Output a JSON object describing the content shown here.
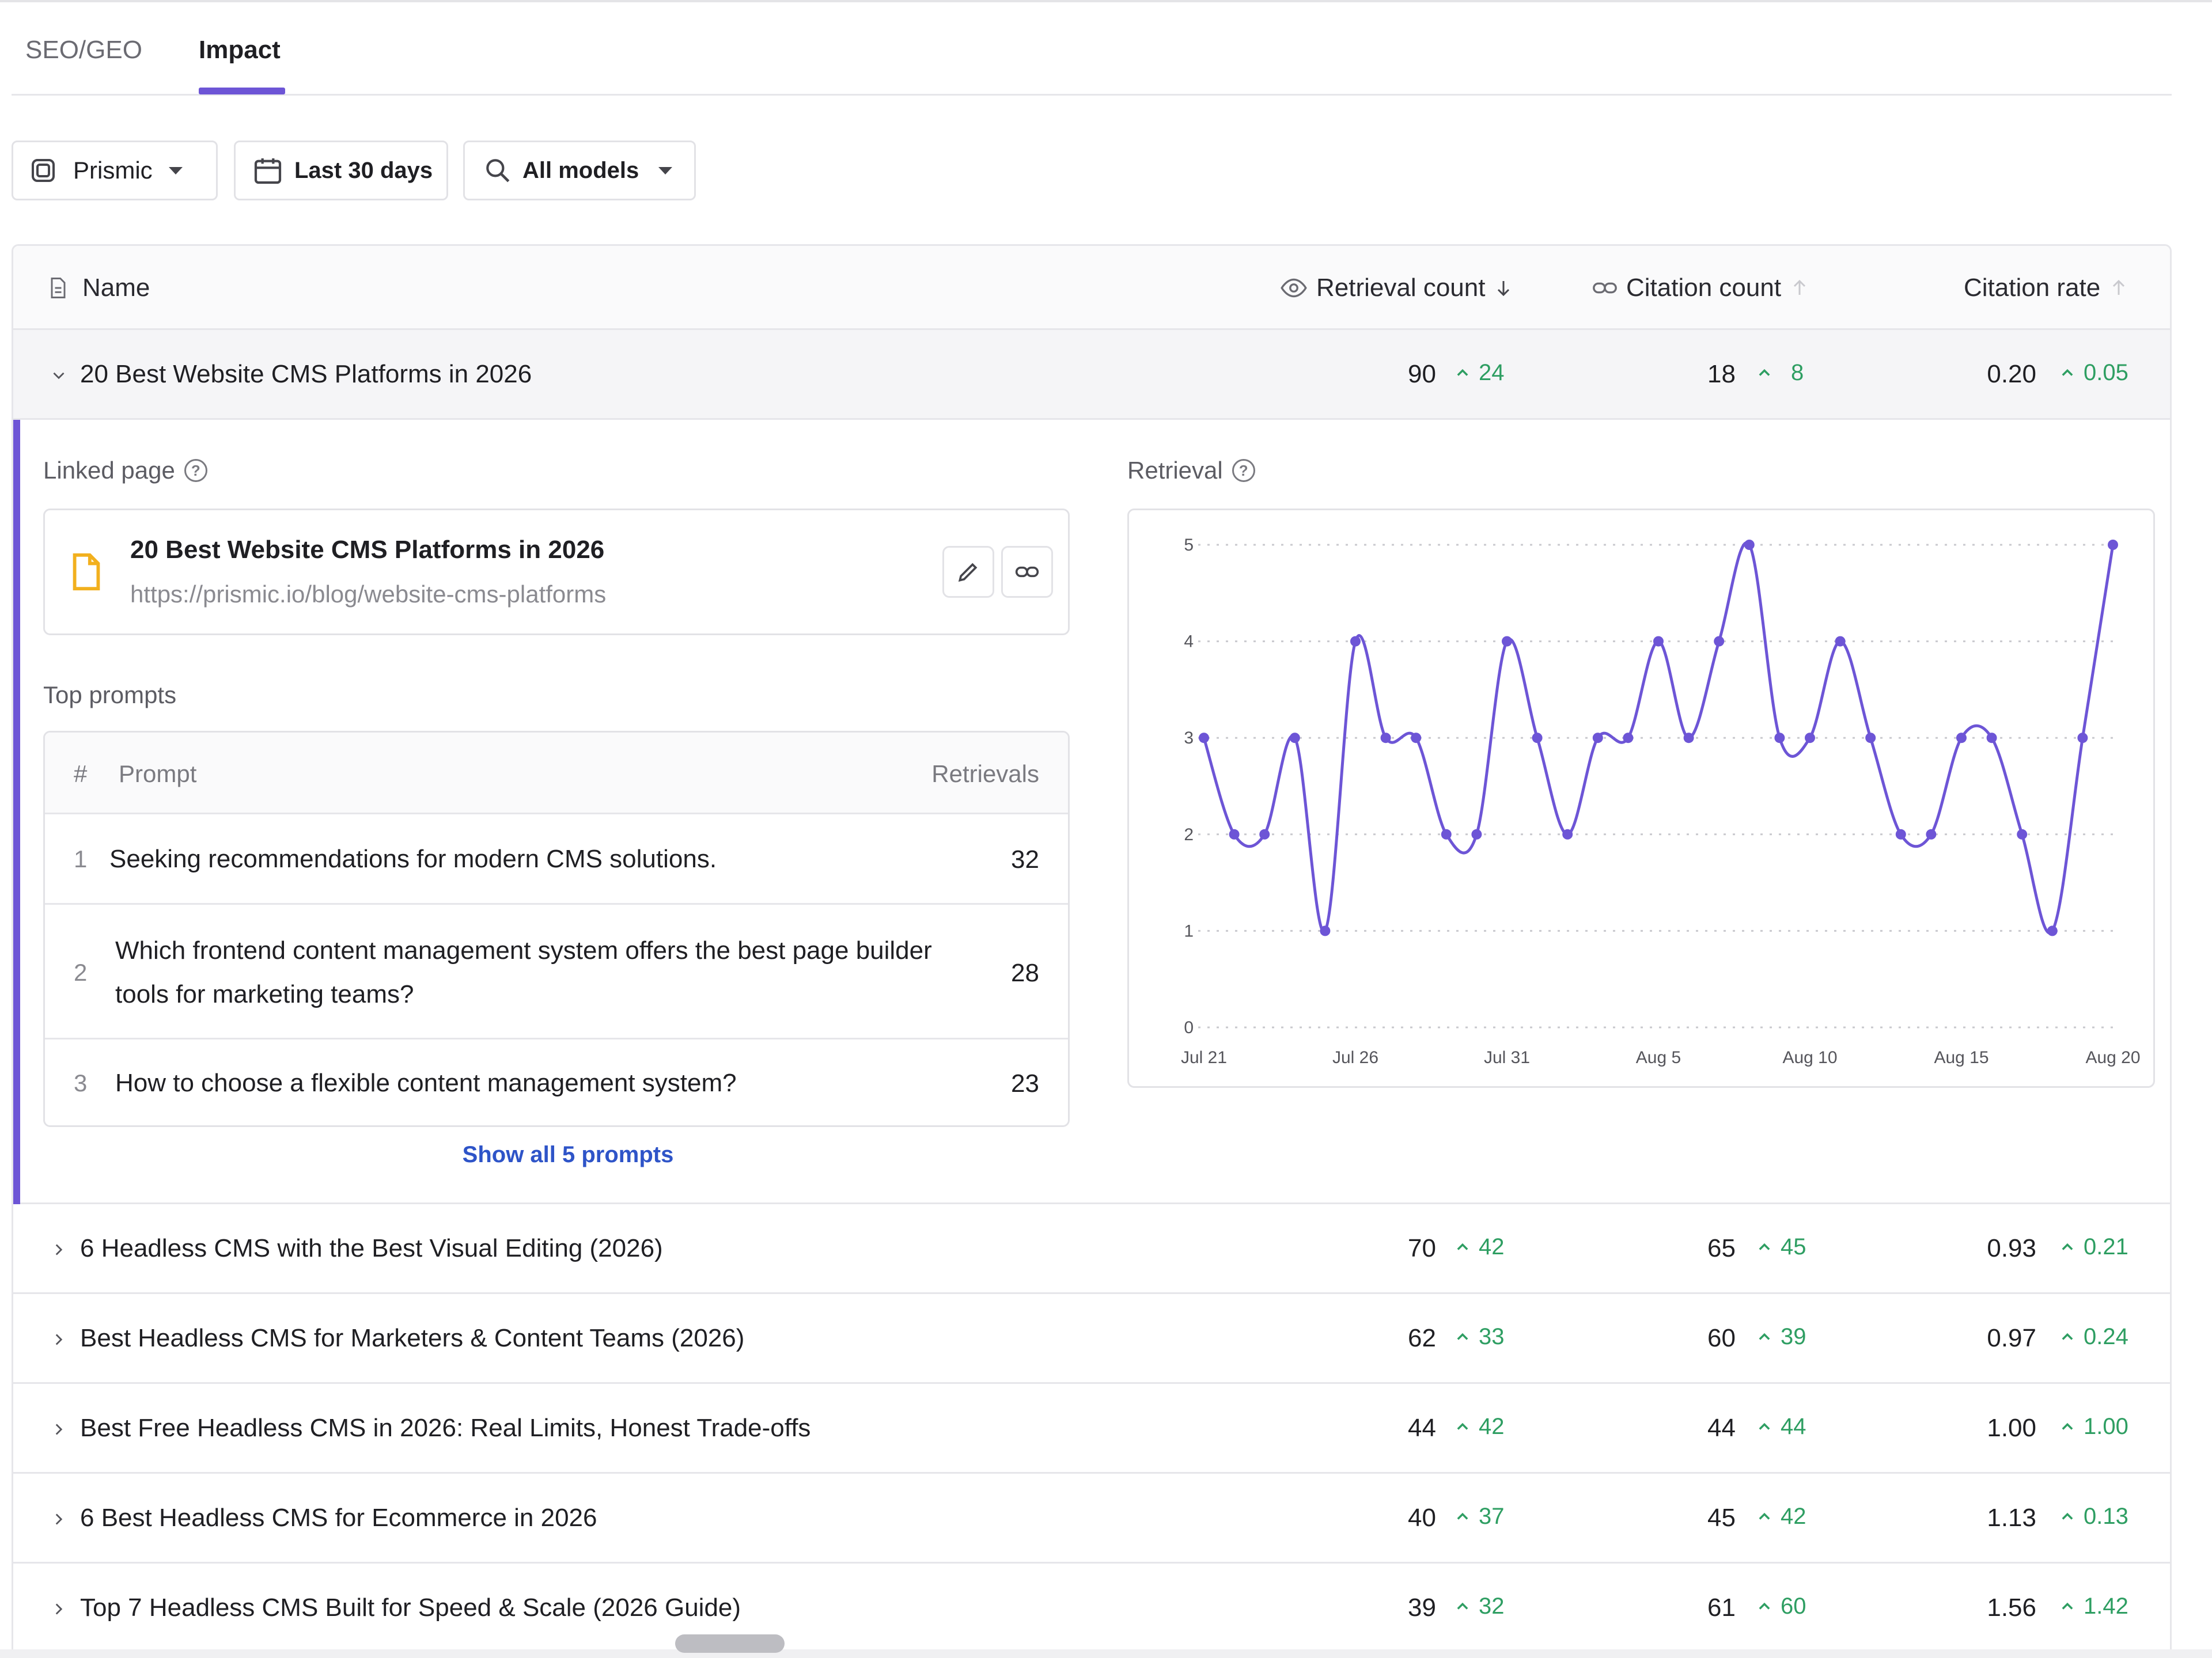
{
  "tabs": [
    {
      "label": "SEO/GEO",
      "active": false
    },
    {
      "label": "Impact",
      "active": true
    }
  ],
  "filters": {
    "project": "Prismic",
    "date_range": "Last 30 days",
    "models": "All models"
  },
  "table": {
    "columns": {
      "name": "Name",
      "retrieval_count": "Retrieval count",
      "citation_count": "Citation count",
      "citation_rate": "Citation rate"
    },
    "rows": [
      {
        "name": "20 Best Website CMS Platforms in 2026",
        "retrieval": "90",
        "retrieval_delta": "24",
        "citation": "18",
        "citation_delta": "8",
        "rate": "0.20",
        "rate_delta": "0.05",
        "expanded": true
      },
      {
        "name": "6 Headless CMS with the Best Visual Editing (2026)",
        "retrieval": "70",
        "retrieval_delta": "42",
        "citation": "65",
        "citation_delta": "45",
        "rate": "0.93",
        "rate_delta": "0.21"
      },
      {
        "name": "Best Headless CMS for Marketers & Content Teams (2026)",
        "retrieval": "62",
        "retrieval_delta": "33",
        "citation": "60",
        "citation_delta": "39",
        "rate": "0.97",
        "rate_delta": "0.24"
      },
      {
        "name": "Best Free Headless CMS in 2026: Real Limits, Honest Trade-offs",
        "retrieval": "44",
        "retrieval_delta": "42",
        "citation": "44",
        "citation_delta": "44",
        "rate": "1.00",
        "rate_delta": "1.00"
      },
      {
        "name": "6 Best Headless CMS for Ecommerce in 2026",
        "retrieval": "40",
        "retrieval_delta": "37",
        "citation": "45",
        "citation_delta": "42",
        "rate": "1.13",
        "rate_delta": "0.13"
      },
      {
        "name": "Top 7 Headless CMS Built for Speed & Scale (2026 Guide)",
        "retrieval": "39",
        "retrieval_delta": "32",
        "citation": "61",
        "citation_delta": "60",
        "rate": "1.56",
        "rate_delta": "1.42"
      }
    ]
  },
  "detail": {
    "linked_page_label": "Linked page",
    "linked_page": {
      "title": "20 Best Website CMS Platforms in 2026",
      "url": "https://prismic.io/blog/website-cms-platforms"
    },
    "top_prompts_label": "Top prompts",
    "prompts_header": {
      "index": "#",
      "prompt": "Prompt",
      "retrievals": "Retrievals"
    },
    "prompts": [
      {
        "index": "1",
        "text": "Seeking recommendations for modern CMS solutions.",
        "retrievals": "32"
      },
      {
        "index": "2",
        "text": "Which frontend content management system offers the best page builder tools for marketing teams?",
        "retrievals": "28"
      },
      {
        "index": "3",
        "text": "How to choose a flexible content management system?",
        "retrievals": "23"
      }
    ],
    "show_all": "Show all 5 prompts",
    "retrieval_label": "Retrieval"
  },
  "chart_data": {
    "type": "line",
    "title": "",
    "xlabel": "",
    "ylabel": "",
    "ylim": [
      0,
      5
    ],
    "yticks": [
      0,
      1,
      2,
      3,
      4,
      5
    ],
    "x_tick_labels": [
      "Jul 21",
      "Jul 26",
      "Jul 31",
      "Aug 5",
      "Aug 10",
      "Aug 15",
      "Aug 20"
    ],
    "x": [
      "Jul 21",
      "Jul 22",
      "Jul 23",
      "Jul 24",
      "Jul 25",
      "Jul 26",
      "Jul 27",
      "Jul 28",
      "Jul 29",
      "Jul 30",
      "Jul 31",
      "Aug 1",
      "Aug 2",
      "Aug 3",
      "Aug 4",
      "Aug 5",
      "Aug 6",
      "Aug 7",
      "Aug 8",
      "Aug 9",
      "Aug 10",
      "Aug 11",
      "Aug 12",
      "Aug 13",
      "Aug 14",
      "Aug 15",
      "Aug 16",
      "Aug 17",
      "Aug 18",
      "Aug 19",
      "Aug 20"
    ],
    "series": [
      {
        "values": [
          3,
          2,
          2,
          3,
          1,
          4,
          3,
          3,
          2,
          2,
          4,
          3,
          2,
          3,
          3,
          4,
          3,
          4,
          5,
          3,
          3,
          4,
          3,
          2,
          2,
          3,
          3,
          2,
          1,
          3,
          5
        ]
      }
    ],
    "grid": true,
    "color": "#6d55d6"
  }
}
